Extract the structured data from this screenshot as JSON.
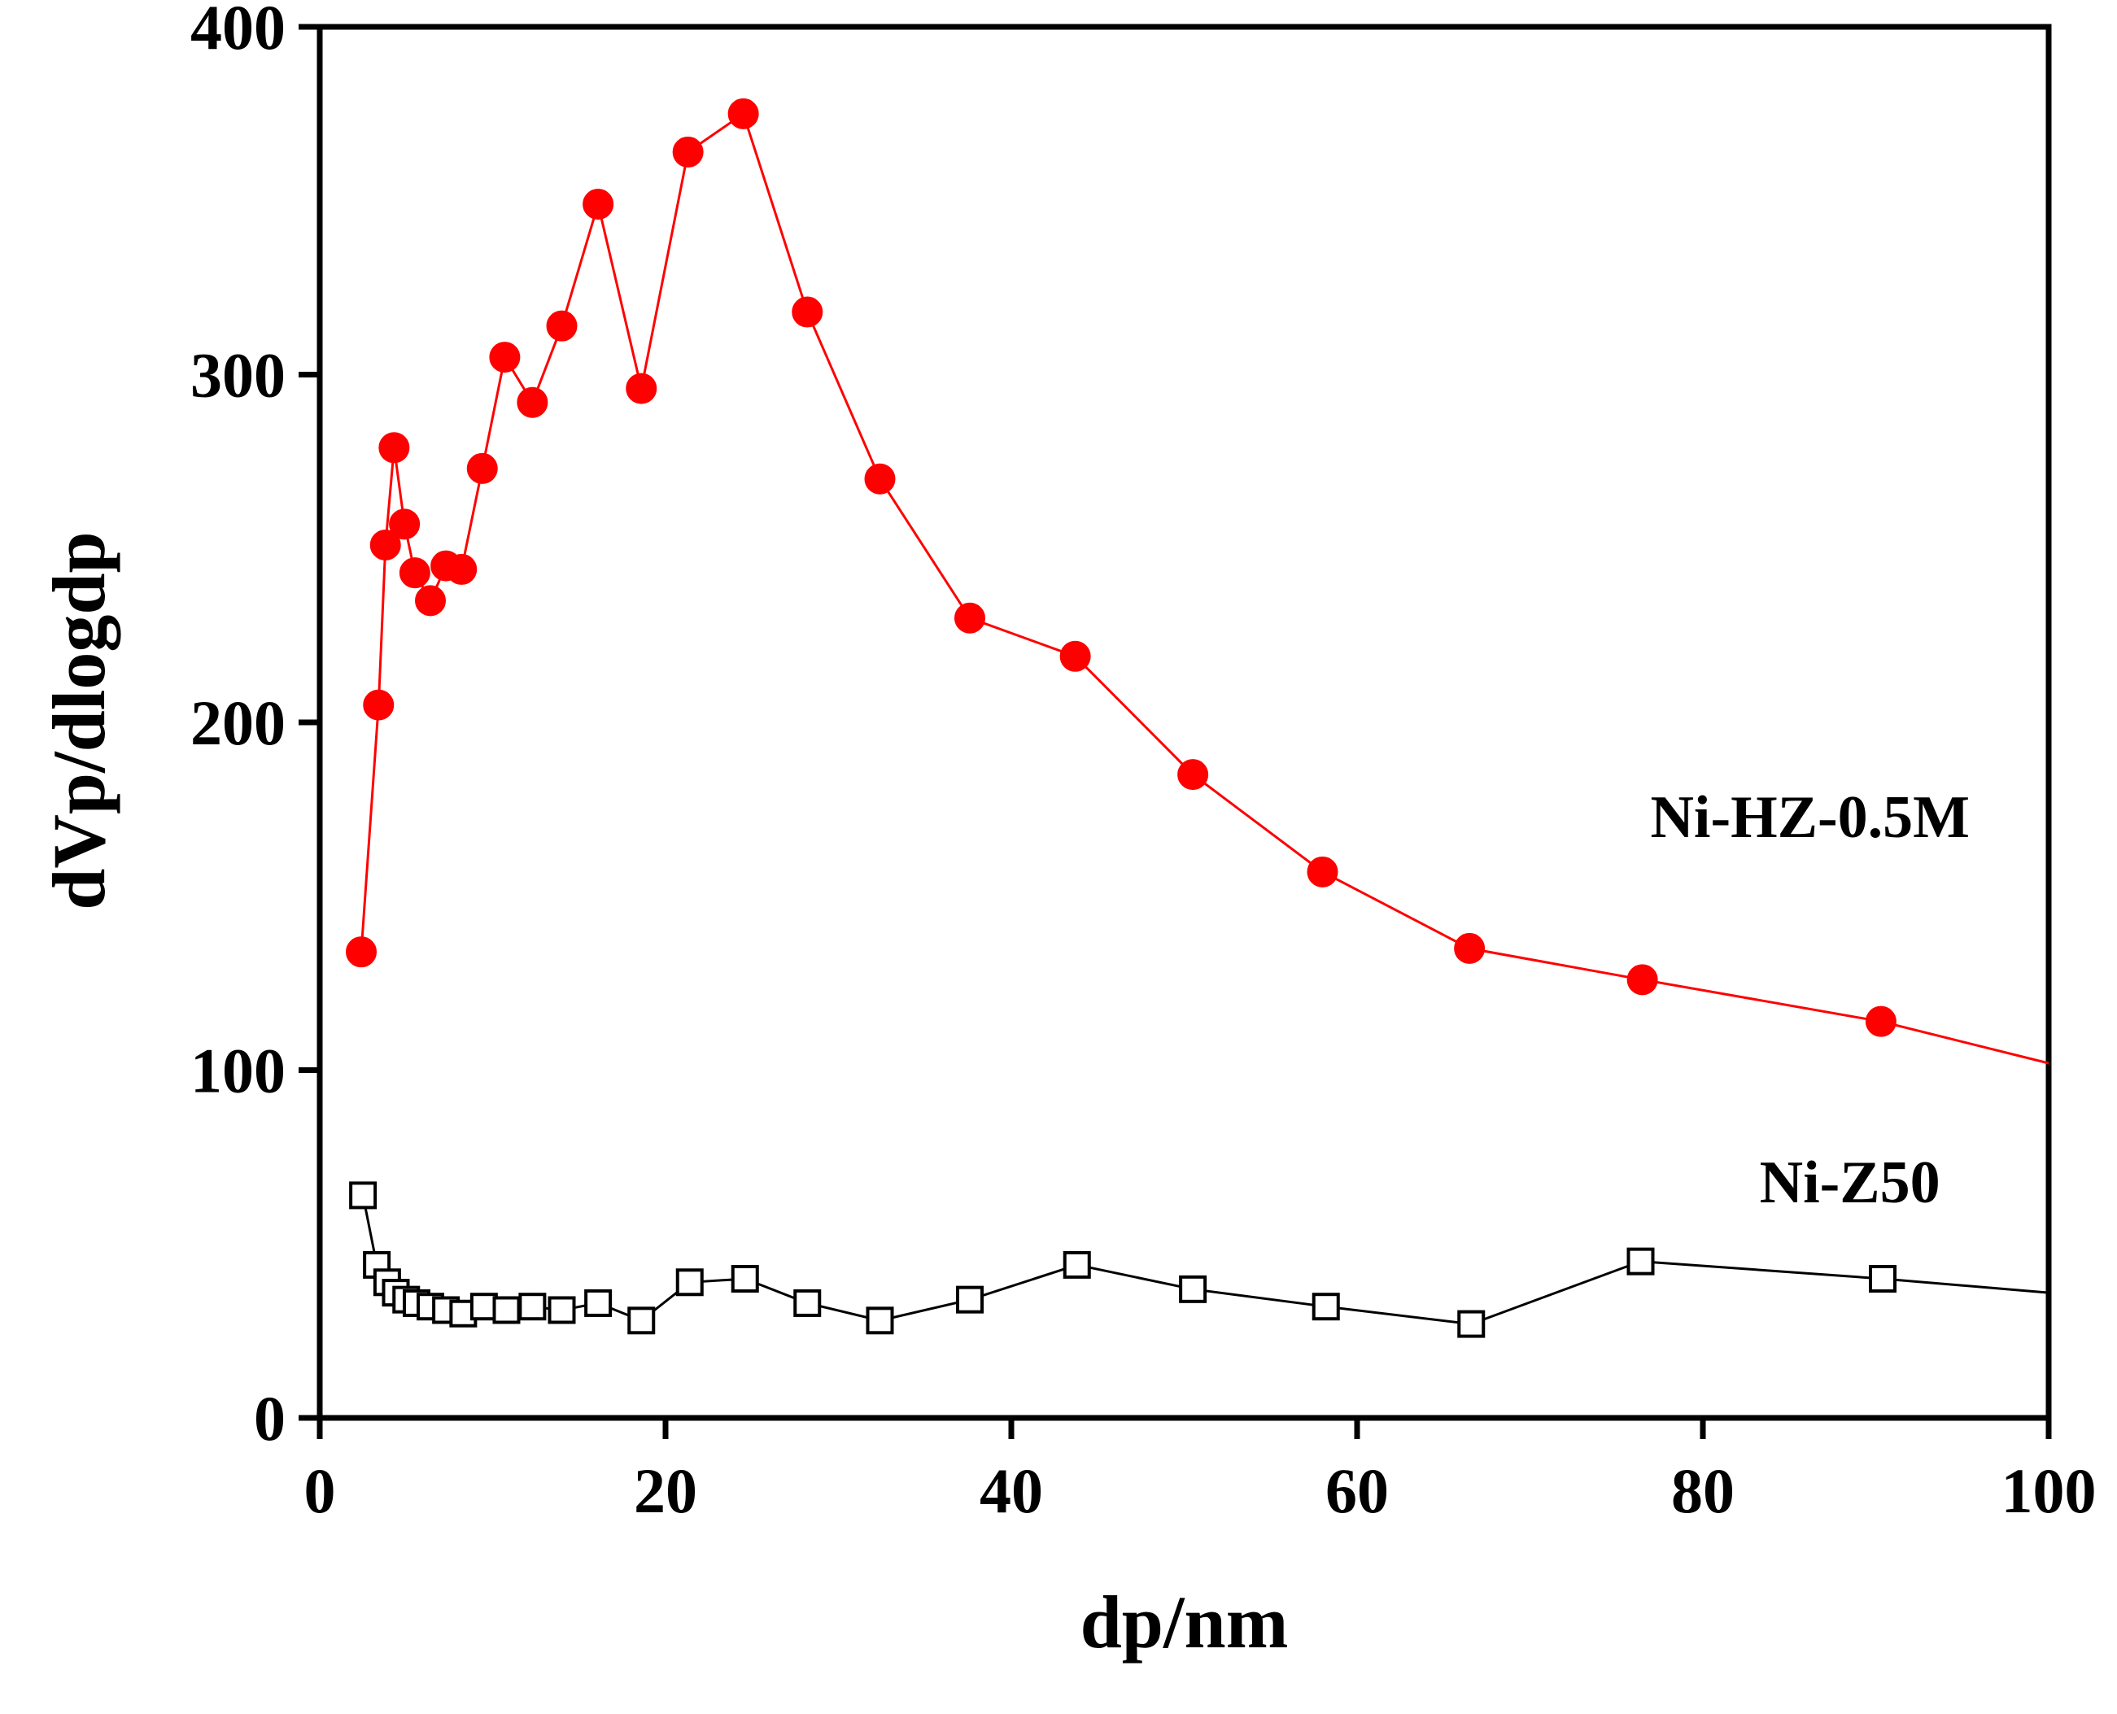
{
  "chart_data": {
    "type": "line",
    "title": "",
    "xlabel": "dp/nm",
    "ylabel": "dVp/dlogdp",
    "xlim": [
      0,
      100
    ],
    "ylim": [
      0,
      400
    ],
    "xticks": [
      0,
      20,
      40,
      60,
      80,
      100
    ],
    "yticks": [
      0,
      100,
      200,
      300,
      400
    ],
    "grid": false,
    "series": [
      {
        "name": "Ni-HZ-0.5M",
        "color": "#ff0000",
        "marker": "filled-circle",
        "label_anchor": [
          86.2,
          167
        ],
        "x": [
          2.4,
          3.4,
          3.8,
          4.3,
          4.9,
          5.5,
          6.4,
          7.3,
          8.2,
          9.4,
          10.7,
          12.3,
          14.0,
          16.1,
          18.6,
          21.3,
          24.5,
          28.2,
          32.4,
          37.6,
          43.7,
          50.5,
          58.0,
          66.5,
          76.5,
          90.3,
          100
        ],
        "y": [
          134,
          205,
          251,
          279,
          257,
          243,
          235,
          245,
          244,
          273,
          305,
          292,
          314,
          349,
          296,
          364,
          375,
          318,
          270,
          230,
          219,
          185,
          157,
          135,
          126,
          114,
          102
        ],
        "markers_through": 26
      },
      {
        "name": "Ni-Z50",
        "color": "#000000",
        "marker": "open-square",
        "label_anchor": [
          88.5,
          62
        ],
        "x": [
          2.5,
          3.3,
          3.9,
          4.4,
          5.0,
          5.6,
          6.4,
          7.3,
          8.3,
          9.5,
          10.8,
          12.3,
          14.0,
          16.1,
          18.6,
          21.4,
          24.6,
          28.2,
          32.4,
          37.6,
          43.8,
          50.5,
          58.2,
          66.6,
          76.4,
          90.4,
          100
        ],
        "y": [
          64,
          44,
          39,
          36,
          34,
          33,
          32,
          31,
          30,
          32,
          31,
          32,
          31,
          33,
          28,
          39,
          40,
          33,
          28,
          34,
          44,
          37,
          32,
          27,
          45,
          40,
          36
        ],
        "markers_through": 26
      }
    ]
  }
}
